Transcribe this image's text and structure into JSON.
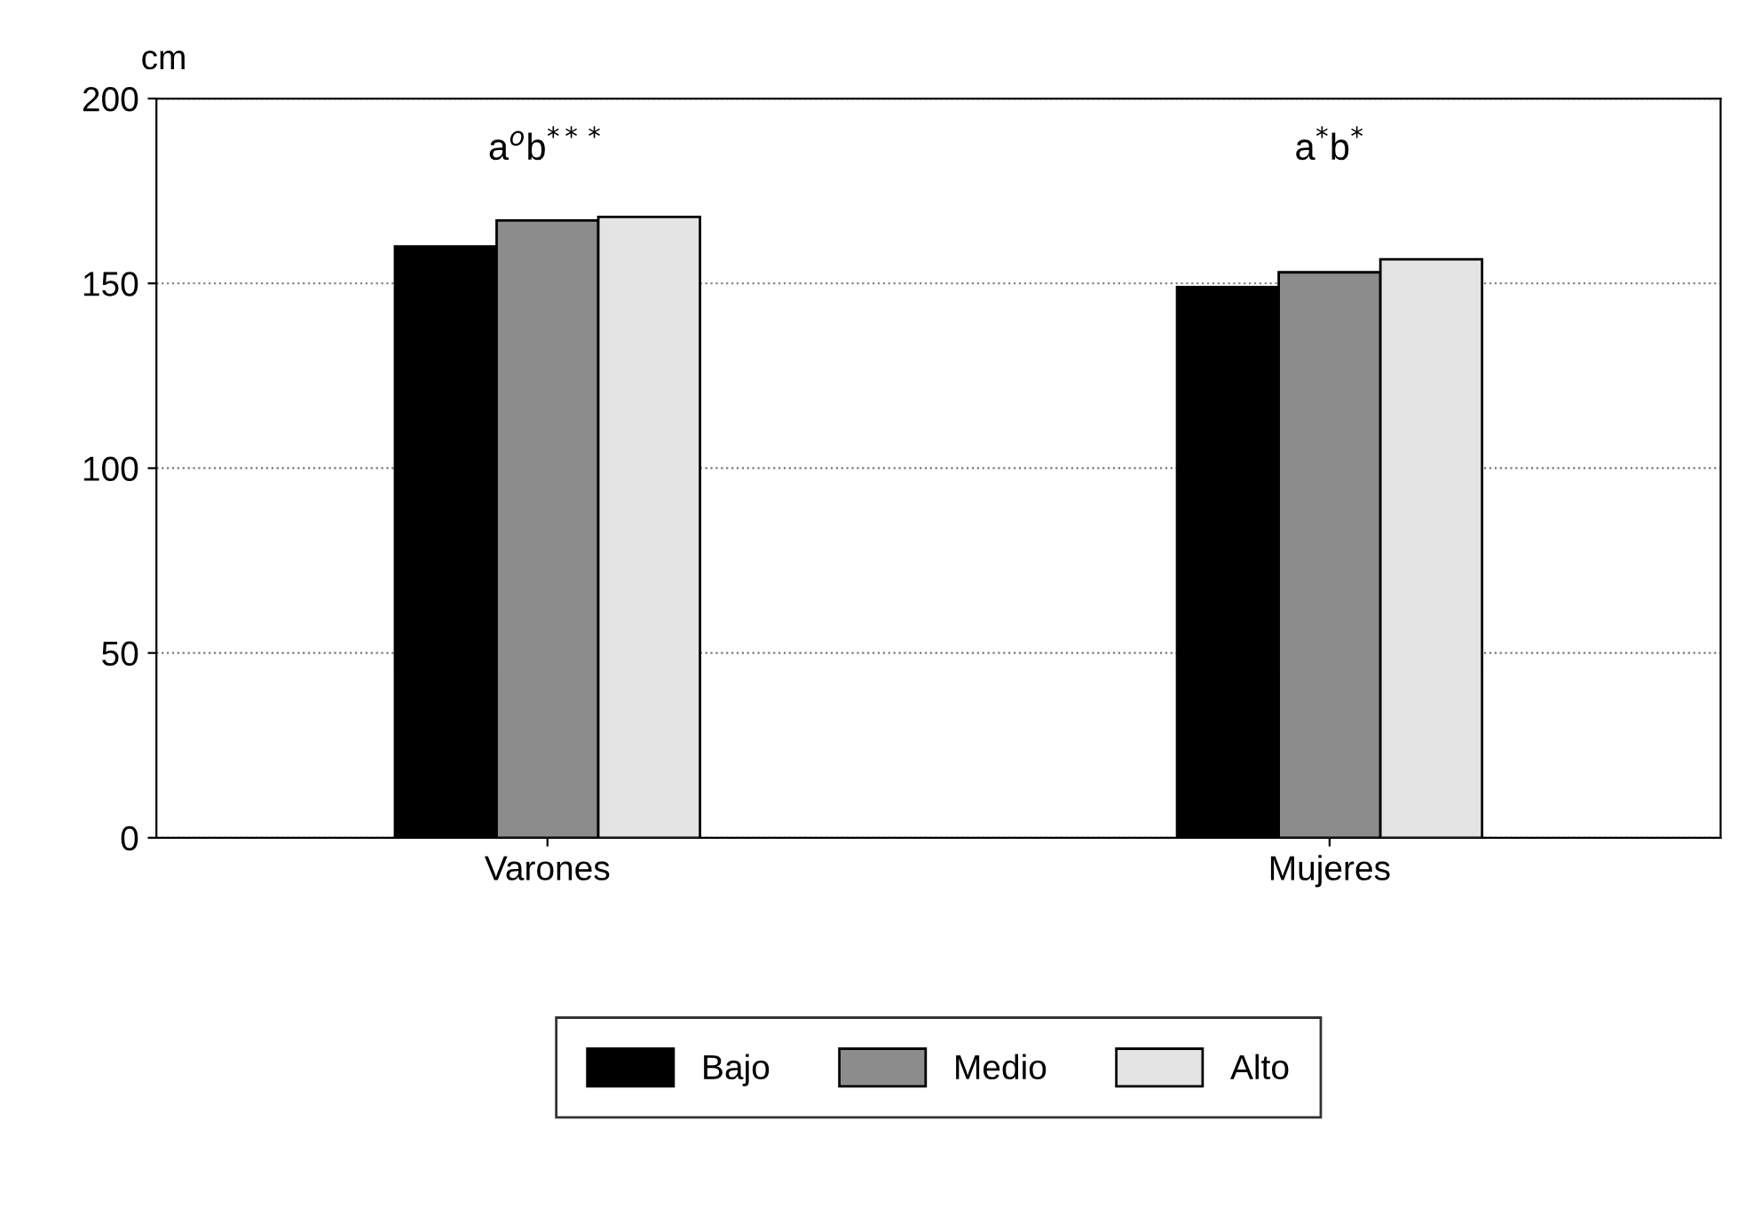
{
  "chart_data": {
    "type": "bar",
    "ylabel": "cm",
    "categories": [
      "Varones",
      "Mujeres"
    ],
    "series": [
      {
        "name": "Bajo",
        "color": "#000000",
        "values": [
          160,
          149
        ]
      },
      {
        "name": "Medio",
        "color": "#8c8c8c",
        "values": [
          167,
          153
        ]
      },
      {
        "name": "Alto",
        "color": "#e4e4e4",
        "values": [
          168,
          156.5
        ]
      }
    ],
    "annotations": [
      "a$^{o}$b$^{***}$",
      "a$^{*}$b$^{*}$"
    ],
    "ylim": [
      0,
      200
    ],
    "yticks": [
      0,
      50,
      100,
      150,
      200
    ],
    "grid": "y",
    "legend": "bottom"
  }
}
